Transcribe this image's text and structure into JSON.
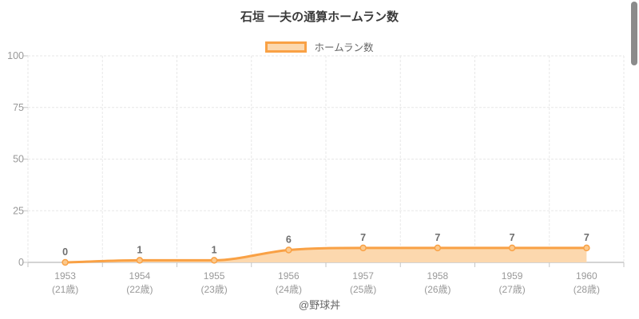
{
  "chart_data": {
    "type": "area",
    "title": "石垣 一夫の通算ホームラン数",
    "series_name": "ホームラン数",
    "categories": [
      "1953",
      "1954",
      "1955",
      "1956",
      "1957",
      "1958",
      "1959",
      "1960"
    ],
    "categories_sub": [
      "(21歳)",
      "(22歳)",
      "(23歳)",
      "(24歳)",
      "(25歳)",
      "(26歳)",
      "(27歳)",
      "(28歳)"
    ],
    "values": [
      0,
      1,
      1,
      6,
      7,
      7,
      7,
      7
    ],
    "ylim": [
      0,
      100
    ],
    "yticks": [
      0,
      25,
      50,
      75,
      100
    ],
    "grid": true,
    "legend_position": "top",
    "point_labels": true,
    "footer": "@野球丼"
  },
  "colors": {
    "line": "#f9a145",
    "area_fill": "#fcd8ae",
    "point_fill": "#fbc98d",
    "grid": "#e7e7e7",
    "axis_line": "#c6c6c6",
    "tick_text": "#999999",
    "point_label_text": "#6e6e6e",
    "title_text": "#3a3a3a",
    "legend_text": "#666666",
    "scrollbar": "#8b8b8b"
  }
}
